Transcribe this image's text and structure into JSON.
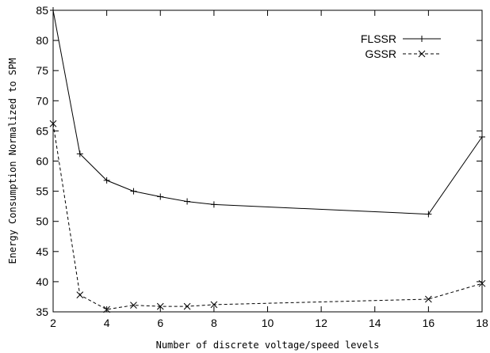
{
  "chart_data": {
    "type": "line",
    "title": "",
    "xlabel": "Number of discrete voltage/speed levels",
    "ylabel": "Energy Consumption Normalized to SPM",
    "xlim": [
      2,
      18
    ],
    "ylim": [
      35,
      85
    ],
    "xticks": [
      2,
      4,
      6,
      8,
      10,
      12,
      14,
      16,
      18
    ],
    "yticks": [
      35,
      40,
      45,
      50,
      55,
      60,
      65,
      70,
      75,
      80,
      85
    ],
    "grid": false,
    "legend_position": "top-right",
    "series": [
      {
        "name": "FLSSR",
        "line_style": "solid",
        "marker": "plus",
        "color": "#000000",
        "x": [
          2,
          3,
          4,
          5,
          6,
          7,
          8,
          16,
          18
        ],
        "y": [
          85.0,
          61.2,
          56.8,
          55.0,
          54.1,
          53.3,
          52.8,
          51.2,
          64.0
        ]
      },
      {
        "name": "GSSR",
        "line_style": "dashed",
        "marker": "x",
        "color": "#000000",
        "x": [
          2,
          3,
          4,
          5,
          6,
          7,
          8,
          16,
          18
        ],
        "y": [
          66.2,
          37.8,
          35.4,
          36.1,
          35.9,
          35.9,
          36.2,
          37.1,
          39.7
        ]
      }
    ]
  }
}
